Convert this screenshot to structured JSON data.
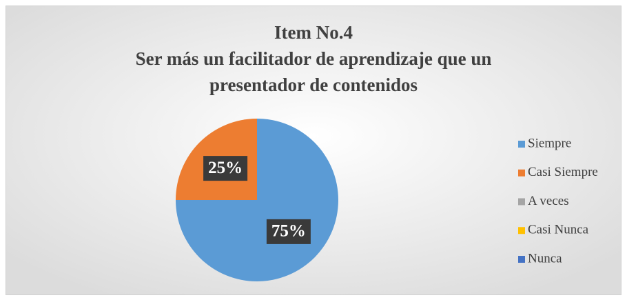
{
  "chart_data": {
    "type": "pie",
    "title": [
      "Item No.4",
      "Ser más un facilitador de aprendizaje que un",
      "presentador de contenidos"
    ],
    "categories": [
      "Siempre",
      "Casi Siempre",
      "A veces",
      "Casi Nunca",
      "Nunca"
    ],
    "values": [
      75,
      25,
      0,
      0,
      0
    ],
    "value_labels": [
      "75%",
      "25%",
      null,
      null,
      null
    ],
    "colors": [
      "#5b9bd5",
      "#ed7d31",
      "#a5a5a5",
      "#ffc000",
      "#4472c4"
    ],
    "legend": "right"
  }
}
